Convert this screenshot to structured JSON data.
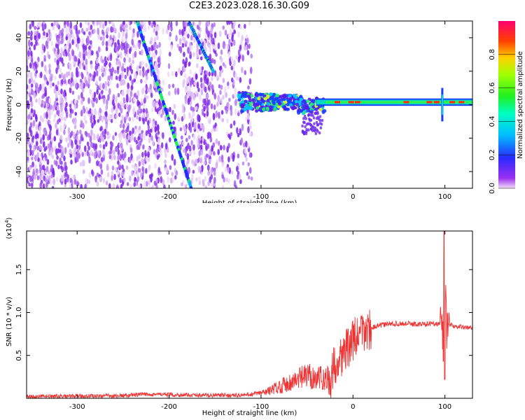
{
  "title": "C2E3.2023.028.16.30.G09",
  "chart_data": [
    {
      "type": "heatmap",
      "xlabel": "Height of straight line (km)",
      "ylabel": "Frequency (Hz)",
      "xlim": [
        -355,
        130
      ],
      "ylim": [
        -50,
        50
      ],
      "xticks": [
        -300,
        -200,
        -100,
        0,
        100
      ],
      "yticks": [
        -40,
        -20,
        0,
        20,
        40
      ],
      "colorbar": {
        "label": "Normalized spectral amplitude",
        "range": [
          0.0,
          1.0
        ],
        "ticks": [
          "0.0",
          "0.2",
          "0.4",
          "0.6",
          "0.8"
        ],
        "tick_values": [
          0,
          0.2,
          0.4,
          0.6,
          0.8
        ]
      },
      "features": {
        "stable_line_freq_hz": 1.5,
        "doppler_trace_1": {
          "x": [
            -235,
            -176
          ],
          "y": [
            50,
            -50
          ]
        },
        "doppler_trace_2": {
          "x": [
            -178,
            -152
          ],
          "y": [
            49,
            20
          ]
        },
        "noise_region_x": [
          -355,
          -110
        ]
      }
    },
    {
      "type": "line",
      "xlabel": "Height of straight line (km)",
      "ylabel": "SNR (10 * v/v)",
      "y_multiplier": "(x10",
      "y_multiplier_exp": "4",
      "xlim": [
        -355,
        130
      ],
      "ylim": [
        0,
        1.95
      ],
      "xticks": [
        -300,
        -200,
        -100,
        0,
        100
      ],
      "yticks": [
        "0.5",
        "1.0",
        "1.5"
      ],
      "ytick_values": [
        0.5,
        1.0,
        1.5
      ],
      "color": "#ee3333",
      "series": [
        {
          "x": [
            -355,
            -300,
            -250,
            -220,
            -200,
            -150,
            -120,
            -100,
            -90,
            -80,
            -70,
            -60,
            -50,
            -40,
            -30,
            -25,
            -20,
            -15,
            -10,
            -5,
            0,
            5,
            10,
            20,
            30,
            40,
            50,
            60,
            70,
            80,
            90,
            94,
            97,
            99,
            100,
            102,
            105,
            110,
            120,
            130
          ],
          "y": [
            0.02,
            0.025,
            0.03,
            0.05,
            0.04,
            0.035,
            0.035,
            0.06,
            0.09,
            0.14,
            0.18,
            0.22,
            0.26,
            0.25,
            0.22,
            0.2,
            0.4,
            0.48,
            0.52,
            0.6,
            0.68,
            0.72,
            0.76,
            0.82,
            0.85,
            0.87,
            0.87,
            0.87,
            0.86,
            0.87,
            0.87,
            0.86,
            0.88,
            0.5,
            1.6,
            0.8,
            0.86,
            0.84,
            0.83,
            0.82
          ]
        }
      ]
    }
  ]
}
